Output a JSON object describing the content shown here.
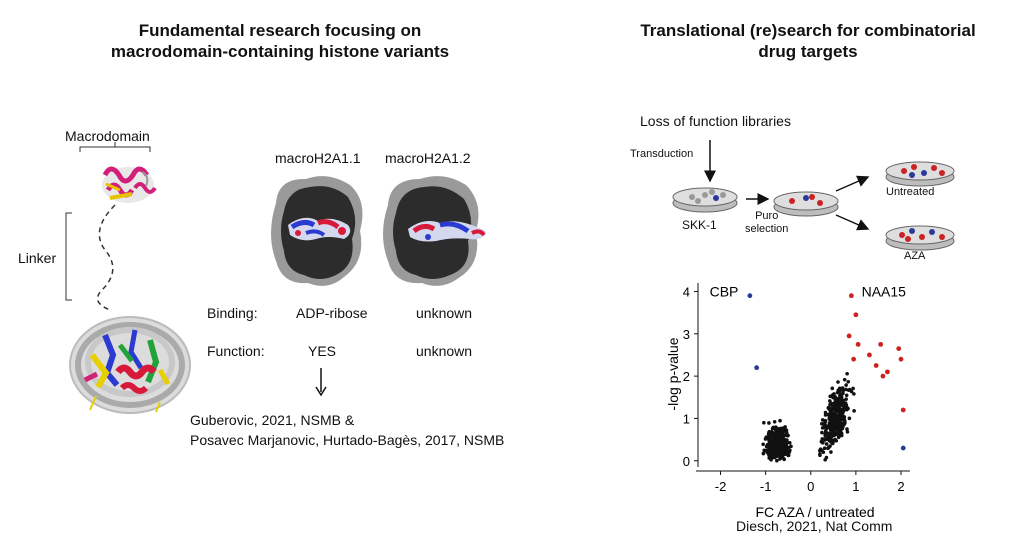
{
  "left": {
    "title_line1": "Fundamental research focusing on",
    "title_line2": "macrodomain-containing histone variants",
    "macrodomain_label": "Macrodomain",
    "linker_label": "Linker",
    "variant1": "macroH2A1.1",
    "variant2": "macroH2A1.2",
    "binding_label": "Binding:",
    "binding_v1": "ADP-ribose",
    "binding_v2": "unknown",
    "function_label": "Function:",
    "function_v1": "YES",
    "function_v2": "unknown",
    "citation_line1": "Guberovic, 2021, NSMB &",
    "citation_line2": "Posavec Marjanovic, Hurtado-Bagès, 2017, NSMB"
  },
  "right": {
    "title_line1": "Translational (re)search for combinatorial",
    "title_line2": "drug targets",
    "libraries_label": "Loss of function libraries",
    "transduction_label": "Transduction",
    "cell_line": "SKK-1",
    "puro_line1": "Puro",
    "puro_line2": "selection",
    "untreated_label": "Untreated",
    "aza_label": "AZA",
    "citation": "Diesch, 2021, Nat Comm"
  },
  "colors": {
    "hit_red": "#cc2222",
    "hit_blue": "#2b3a9a",
    "dot_black": "#111111"
  },
  "chart_data": {
    "type": "scatter",
    "xlabel": "FC AZA / untreated",
    "ylabel": "-log p-value",
    "xlim": [
      -2.5,
      2.2
    ],
    "ylim": [
      -0.1,
      4.2
    ],
    "xticks": [
      "-2",
      "-1",
      "0",
      "1",
      "2"
    ],
    "yticks": [
      "0",
      "1",
      "2",
      "3",
      "4"
    ],
    "annotations": [
      {
        "text": "CBP",
        "x": -1.4,
        "y": 3.95
      },
      {
        "text": "NAA15",
        "x": 0.95,
        "y": 3.95
      }
    ],
    "series": [
      {
        "color": "#2b3a9a",
        "points": [
          [
            -1.35,
            3.9
          ],
          [
            -1.2,
            2.2
          ],
          [
            2.05,
            0.3
          ]
        ]
      },
      {
        "color": "#cc2222",
        "points": [
          [
            0.9,
            3.9
          ],
          [
            1.0,
            3.45
          ],
          [
            0.85,
            2.95
          ],
          [
            1.05,
            2.75
          ],
          [
            0.95,
            2.4
          ],
          [
            1.3,
            2.5
          ],
          [
            1.55,
            2.75
          ],
          [
            1.45,
            2.25
          ],
          [
            1.7,
            2.1
          ],
          [
            1.95,
            2.65
          ],
          [
            2.0,
            2.4
          ],
          [
            2.05,
            1.2
          ],
          [
            1.6,
            2.0
          ]
        ]
      }
    ]
  }
}
